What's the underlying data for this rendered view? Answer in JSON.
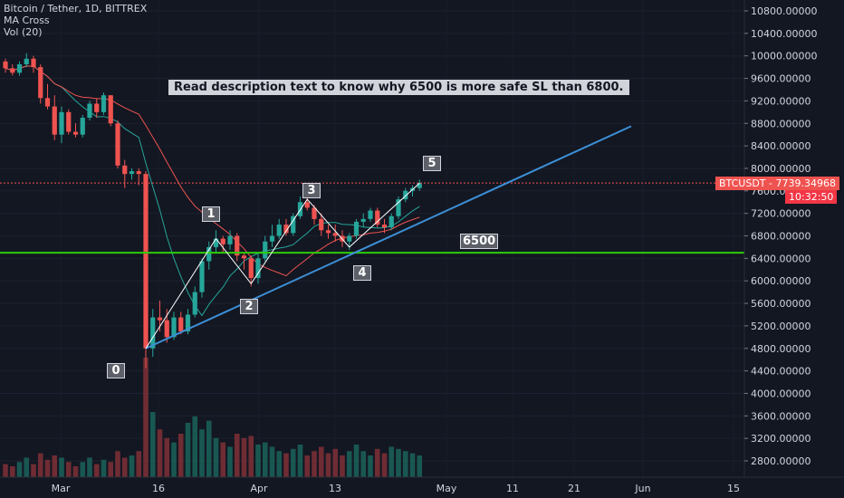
{
  "legend": {
    "symbol_line": "Bitcoin / Tether, 1D, BITTREX",
    "indicator_ma": "MA Cross",
    "indicator_vol": "Vol (20)"
  },
  "annotation_text": "Read description text to know why 6500 is more safe SL than 6800.",
  "wave_labels": [
    "0",
    "1",
    "2",
    "3",
    "4",
    "5"
  ],
  "level_label": "6500",
  "price_tag": {
    "symbol": "BTCUSDT",
    "price": "7739.34968",
    "countdown": "10:32:50"
  },
  "colors": {
    "background": "#131722",
    "up": "#26a69a",
    "down": "#ef5350",
    "trendline": "#3c8fd6",
    "support_line": "#2ecc0a",
    "ma_fast": "#26a69a",
    "ma_slow": "#ef5350",
    "wave_line": "#ffffff"
  },
  "chart_data": {
    "type": "candlestick",
    "y_axis": {
      "ticks": [
        "10800.00000",
        "10400.00000",
        "10000.00000",
        "9600.00000",
        "9200.00000",
        "8800.00000",
        "8400.00000",
        "8000.00000",
        "7600.00000",
        "7200.00000",
        "6800.00000",
        "6400.00000",
        "6000.00000",
        "5600.00000",
        "5200.00000",
        "4800.00000",
        "4400.00000",
        "4000.00000",
        "3600.00000",
        "3200.00000",
        "2800.00000"
      ],
      "range": [
        2600,
        11000
      ]
    },
    "x_axis": {
      "ticks": [
        "Mar",
        "16",
        "Apr",
        "13",
        "May",
        "11",
        "21",
        "Jun",
        "15"
      ]
    },
    "horizontal_level": 6500,
    "candles": [
      [
        9900,
        9950,
        9700,
        9780
      ],
      [
        9780,
        9850,
        9650,
        9700
      ],
      [
        9700,
        9900,
        9650,
        9850
      ],
      [
        9850,
        10050,
        9800,
        9950
      ],
      [
        9950,
        10000,
        9700,
        9800
      ],
      [
        9800,
        9850,
        9150,
        9250
      ],
      [
        9250,
        9500,
        9050,
        9100
      ],
      [
        9100,
        9300,
        8500,
        8600
      ],
      [
        8600,
        9100,
        8450,
        9000
      ],
      [
        9000,
        9050,
        8600,
        8650
      ],
      [
        8650,
        8800,
        8550,
        8600
      ],
      [
        8600,
        8950,
        8550,
        8900
      ],
      [
        8900,
        9200,
        8850,
        9150
      ],
      [
        9150,
        9250,
        8900,
        9000
      ],
      [
        9000,
        9350,
        8950,
        9300
      ],
      [
        9300,
        9300,
        8750,
        8800
      ],
      [
        8800,
        8850,
        8000,
        8050
      ],
      [
        8050,
        8150,
        7650,
        7900
      ],
      [
        7900,
        8000,
        7800,
        7950
      ],
      [
        7950,
        8000,
        7700,
        7900
      ],
      [
        7900,
        7950,
        4450,
        4800
      ],
      [
        4800,
        5500,
        4650,
        5350
      ],
      [
        5350,
        5650,
        5100,
        5300
      ],
      [
        5300,
        5500,
        4900,
        5000
      ],
      [
        5000,
        5450,
        4950,
        5350
      ],
      [
        5350,
        5450,
        5050,
        5100
      ],
      [
        5100,
        5500,
        5050,
        5400
      ],
      [
        5400,
        5900,
        5350,
        5800
      ],
      [
        5800,
        6400,
        5700,
        6350
      ],
      [
        6350,
        6700,
        6200,
        6600
      ],
      [
        6600,
        6900,
        6500,
        6750
      ],
      [
        6750,
        6800,
        6500,
        6650
      ],
      [
        6650,
        6900,
        6550,
        6800
      ],
      [
        6800,
        6850,
        6350,
        6450
      ],
      [
        6450,
        6500,
        6200,
        6400
      ],
      [
        6400,
        6450,
        5900,
        6050
      ],
      [
        6050,
        6500,
        5950,
        6400
      ],
      [
        6400,
        6800,
        6350,
        6700
      ],
      [
        6700,
        7000,
        6600,
        6800
      ],
      [
        6800,
        7100,
        6750,
        7000
      ],
      [
        7000,
        7100,
        6800,
        6850
      ],
      [
        6850,
        7200,
        6800,
        7150
      ],
      [
        7150,
        7500,
        7100,
        7400
      ],
      [
        7400,
        7500,
        7250,
        7300
      ],
      [
        7300,
        7350,
        7000,
        7100
      ],
      [
        7100,
        7200,
        6800,
        6900
      ],
      [
        6900,
        7000,
        6750,
        6850
      ],
      [
        6850,
        7000,
        6700,
        6800
      ],
      [
        6800,
        6900,
        6600,
        6700
      ],
      [
        6700,
        6850,
        6550,
        6800
      ],
      [
        6800,
        7100,
        6750,
        7050
      ],
      [
        7050,
        7200,
        6950,
        7100
      ],
      [
        7100,
        7300,
        7050,
        7250
      ],
      [
        7250,
        7300,
        6950,
        7000
      ],
      [
        7000,
        7100,
        6850,
        6950
      ],
      [
        6950,
        7200,
        6900,
        7150
      ],
      [
        7150,
        7500,
        7100,
        7450
      ],
      [
        7450,
        7650,
        7400,
        7600
      ],
      [
        7600,
        7700,
        7500,
        7650
      ],
      [
        7650,
        7800,
        7600,
        7739
      ]
    ],
    "volume": [
      0.06,
      0.05,
      0.07,
      0.09,
      0.06,
      0.11,
      0.08,
      0.1,
      0.09,
      0.07,
      0.05,
      0.07,
      0.09,
      0.06,
      0.08,
      0.07,
      0.12,
      0.09,
      0.1,
      0.12,
      0.55,
      0.3,
      0.22,
      0.18,
      0.16,
      0.2,
      0.25,
      0.28,
      0.22,
      0.26,
      0.18,
      0.16,
      0.14,
      0.2,
      0.18,
      0.19,
      0.15,
      0.16,
      0.14,
      0.12,
      0.11,
      0.13,
      0.15,
      0.1,
      0.12,
      0.14,
      0.11,
      0.13,
      0.1,
      0.12,
      0.15,
      0.12,
      0.1,
      0.13,
      0.11,
      0.14,
      0.13,
      0.12,
      0.11,
      0.1
    ]
  }
}
